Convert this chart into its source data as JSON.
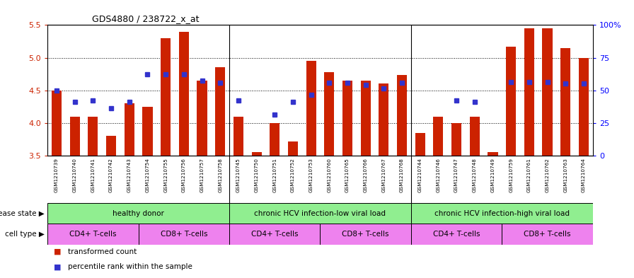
{
  "title": "GDS4880 / 238722_x_at",
  "samples": [
    "GSM1210739",
    "GSM1210740",
    "GSM1210741",
    "GSM1210742",
    "GSM1210743",
    "GSM1210754",
    "GSM1210755",
    "GSM1210756",
    "GSM1210757",
    "GSM1210758",
    "GSM1210745",
    "GSM1210750",
    "GSM1210751",
    "GSM1210752",
    "GSM1210753",
    "GSM1210760",
    "GSM1210765",
    "GSM1210766",
    "GSM1210767",
    "GSM1210768",
    "GSM1210744",
    "GSM1210746",
    "GSM1210747",
    "GSM1210748",
    "GSM1210749",
    "GSM1210759",
    "GSM1210761",
    "GSM1210762",
    "GSM1210763",
    "GSM1210764"
  ],
  "bar_values": [
    4.5,
    4.1,
    4.1,
    3.8,
    4.3,
    4.25,
    5.3,
    5.4,
    4.65,
    4.85,
    4.1,
    3.55,
    4.0,
    3.72,
    4.95,
    4.78,
    4.65,
    4.65,
    4.6,
    4.73,
    3.85,
    4.1,
    4.0,
    4.1,
    3.55,
    5.17,
    5.45,
    5.45,
    5.15,
    5.0
  ],
  "percentile_values": [
    4.5,
    4.32,
    4.35,
    4.23,
    4.32,
    4.75,
    4.75,
    4.75,
    4.65,
    4.62,
    4.35,
    null,
    4.13,
    4.32,
    4.43,
    4.62,
    4.62,
    4.58,
    4.53,
    4.62,
    null,
    null,
    4.35,
    4.32,
    null,
    4.63,
    4.63,
    4.63,
    4.6,
    4.6
  ],
  "ylim": [
    3.5,
    5.5
  ],
  "yticks": [
    3.5,
    4.0,
    4.5,
    5.0,
    5.5
  ],
  "right_yticks": [
    0,
    25,
    50,
    75,
    100
  ],
  "right_ytick_labels": [
    "0",
    "25",
    "50",
    "75",
    "100%"
  ],
  "bar_color": "#CC2200",
  "percentile_color": "#3333CC",
  "disease_groups": [
    {
      "label": "healthy donor",
      "start": 0,
      "end": 9,
      "color": "#90EE90"
    },
    {
      "label": "chronic HCV infection-low viral load",
      "start": 10,
      "end": 19,
      "color": "#90EE90"
    },
    {
      "label": "chronic HCV infection-high viral load",
      "start": 20,
      "end": 29,
      "color": "#90EE90"
    }
  ],
  "cell_type_groups": [
    {
      "label": "CD4+ T-cells",
      "start": 0,
      "end": 4,
      "color": "#EE82EE"
    },
    {
      "label": "CD8+ T-cells",
      "start": 5,
      "end": 9,
      "color": "#EE82EE"
    },
    {
      "label": "CD4+ T-cells",
      "start": 10,
      "end": 14,
      "color": "#EE82EE"
    },
    {
      "label": "CD8+ T-cells",
      "start": 15,
      "end": 19,
      "color": "#EE82EE"
    },
    {
      "label": "CD4+ T-cells",
      "start": 20,
      "end": 24,
      "color": "#EE82EE"
    },
    {
      "label": "CD8+ T-cells",
      "start": 25,
      "end": 29,
      "color": "#EE82EE"
    }
  ],
  "disease_state_label": "disease state",
  "cell_type_label": "cell type",
  "legend_items": [
    {
      "label": "transformed count",
      "color": "#CC2200"
    },
    {
      "label": "percentile rank within the sample",
      "color": "#3333CC"
    }
  ],
  "xtick_bg_color": "#C8C8C8",
  "group_sep_color": "#000000",
  "group_boundaries": [
    9.5,
    19.5
  ]
}
